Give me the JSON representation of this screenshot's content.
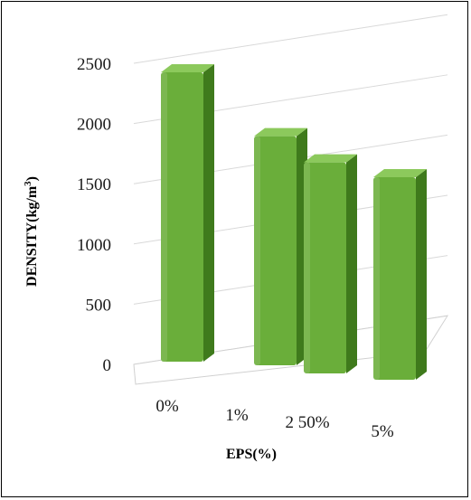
{
  "chart_data": {
    "type": "bar",
    "categories": [
      "0%",
      "1%",
      "2 50%",
      "5%"
    ],
    "values": [
      2400,
      1900,
      1750,
      1680
    ],
    "xlabel": "EPS(%)",
    "ylabel": "DENSITY(kg/m",
    "ylabel_sup": "3",
    "ylabel_end": ")",
    "ylim": [
      0,
      2500
    ],
    "yticks": [
      "0",
      "500",
      "1000",
      "1500",
      "2000",
      "2500"
    ],
    "grid": true,
    "bar_color": "#6aae3a",
    "bar_side_color": "#3f7a1c",
    "bar_top_color": "#8cc95c"
  }
}
